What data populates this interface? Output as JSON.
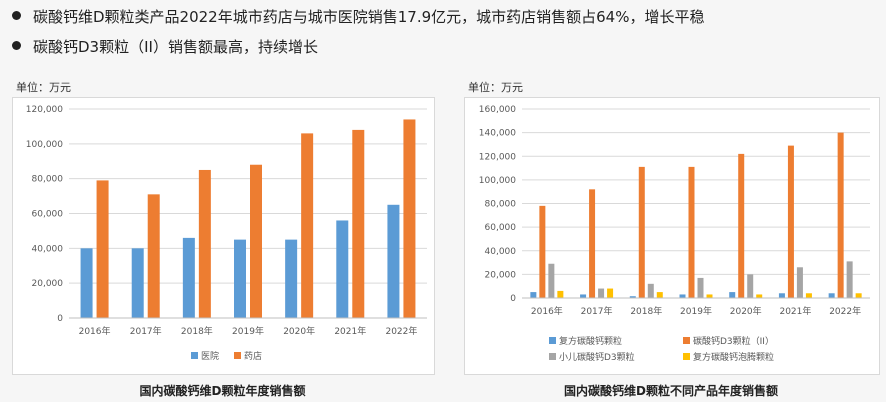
{
  "bullets": [
    "碳酸钙维D颗粒类产品2022年城市药店与城市医院销售17.9亿元，城市药店销售额占64%，增长平稳",
    "碳酸钙D3颗粒（II）销售额最高，持续增长"
  ],
  "colors": {
    "blue": "#5b9bd5",
    "orange": "#ed7d31",
    "gray": "#a5a5a5",
    "yellow": "#ffc000",
    "grid": "#d9d9d9"
  },
  "chart_data": [
    {
      "type": "bar",
      "unit_label": "单位：万元",
      "title": "国内碳酸钙维D颗粒年度销售额",
      "categories": [
        "2016年",
        "2017年",
        "2018年",
        "2019年",
        "2020年",
        "2021年",
        "2022年"
      ],
      "ylim": [
        0,
        120000
      ],
      "yticks": [
        0,
        20000,
        40000,
        60000,
        80000,
        100000,
        120000
      ],
      "ytick_labels": [
        "0",
        "20,000",
        "40,000",
        "60,000",
        "80,000",
        "100,000",
        "120,000"
      ],
      "series": [
        {
          "name": "医院",
          "color": "#5b9bd5",
          "values": [
            40000,
            40000,
            46000,
            45000,
            45000,
            56000,
            65000
          ]
        },
        {
          "name": "药店",
          "color": "#ed7d31",
          "values": [
            79000,
            71000,
            85000,
            88000,
            106000,
            108000,
            114000
          ]
        }
      ],
      "legend": "bottom",
      "grid": true
    },
    {
      "type": "bar",
      "unit_label": "单位：万元",
      "title": "国内碳酸钙维D颗粒不同产品年度销售额",
      "categories": [
        "2016年",
        "2017年",
        "2018年",
        "2019年",
        "2020年",
        "2021年",
        "2022年"
      ],
      "ylim": [
        0,
        160000
      ],
      "yticks": [
        0,
        20000,
        40000,
        60000,
        80000,
        100000,
        120000,
        140000,
        160000
      ],
      "ytick_labels": [
        "0",
        "20,000",
        "40,000",
        "60,000",
        "80,000",
        "100,000",
        "120,000",
        "140,000",
        "160,000"
      ],
      "series": [
        {
          "name": "复方碳酸钙颗粒",
          "color": "#5b9bd5",
          "values": [
            5000,
            3000,
            1500,
            3000,
            5000,
            4000,
            4000
          ]
        },
        {
          "name": "碳酸钙D3颗粒（II）",
          "color": "#ed7d31",
          "values": [
            78000,
            92000,
            111000,
            111000,
            122000,
            129000,
            140000
          ]
        },
        {
          "name": "小儿碳酸钙D3颗粒",
          "color": "#a5a5a5",
          "values": [
            29000,
            8000,
            12000,
            17000,
            20000,
            26000,
            31000
          ]
        },
        {
          "name": "复方碳酸钙泡腾颗粒",
          "color": "#ffc000",
          "values": [
            6000,
            8000,
            5000,
            3000,
            3000,
            4000,
            4000
          ]
        }
      ],
      "legend": "bottom",
      "grid": true
    }
  ]
}
